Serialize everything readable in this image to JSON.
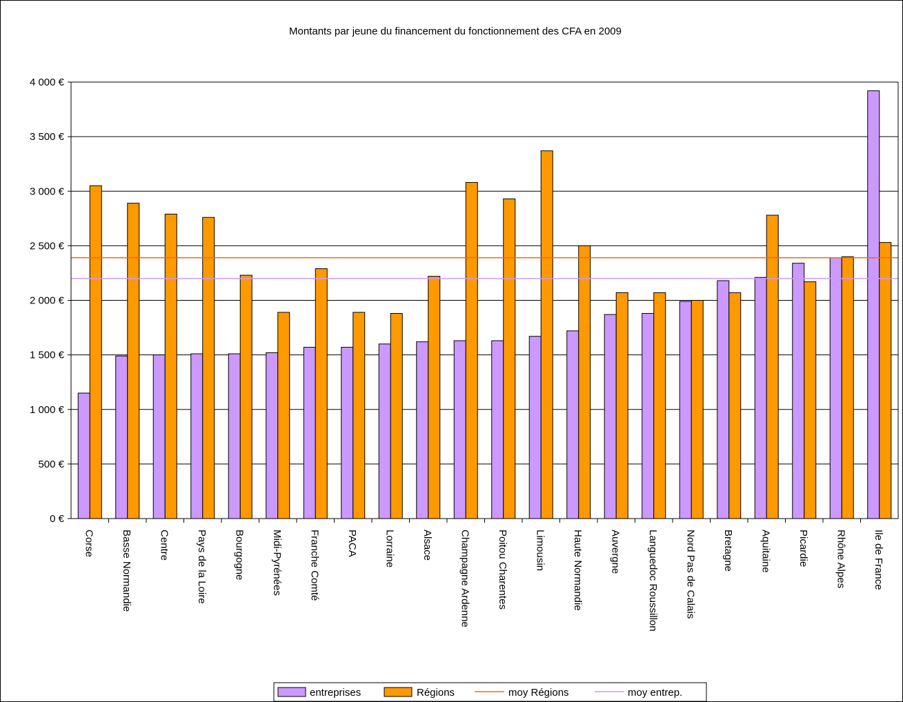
{
  "chart_data": {
    "type": "bar",
    "title": "Montants par jeune du financement du fonctionnement des CFA en 2009",
    "categories": [
      "Corse",
      "Basse Normandie",
      "Centre",
      "Pays de la Loire",
      "Bourgogne",
      "Midi-Pyrénées",
      "Franche Comté",
      "PACA",
      "Lorraine",
      "Alsace",
      "Champagne Ardenne",
      "Poitou Charentes",
      "Limousin",
      "Haute Normandie",
      "Auvergne",
      "Languedoc Roussillon",
      "Nord Pas de Calais",
      "Bretagne",
      "Aquitaine",
      "Picardie",
      "Rhône Alpes",
      "Ile de France"
    ],
    "series": [
      {
        "name": "entreprises",
        "color": "#cc99ff",
        "values": [
          1150,
          1490,
          1500,
          1510,
          1510,
          1520,
          1570,
          1570,
          1600,
          1620,
          1630,
          1630,
          1670,
          1720,
          1870,
          1880,
          1990,
          2180,
          2210,
          2340,
          2390,
          3920
        ]
      },
      {
        "name": "Régions",
        "color": "#ff9900",
        "values": [
          3050,
          2890,
          2790,
          2760,
          2230,
          1890,
          2290,
          1890,
          1880,
          2220,
          3080,
          2930,
          3370,
          2500,
          2070,
          2070,
          2000,
          2070,
          2780,
          2170,
          2400,
          2530
        ]
      }
    ],
    "reference_lines": [
      {
        "name": "moy Régions",
        "value": 2390,
        "color": "#ff6600"
      },
      {
        "name": "moy entrep.",
        "value": 2200,
        "color": "#cc99ff"
      }
    ],
    "ylim": [
      0,
      4000
    ],
    "yticks": [
      0,
      500,
      1000,
      1500,
      2000,
      2500,
      3000,
      3500,
      4000
    ],
    "ytick_labels": [
      "0 €",
      "500 €",
      "1 000 €",
      "1 500 €",
      "2 000 €",
      "2 500 €",
      "3 000 €",
      "3 500 €",
      "4 000 €"
    ],
    "grid": true,
    "legend_position": "bottom"
  }
}
